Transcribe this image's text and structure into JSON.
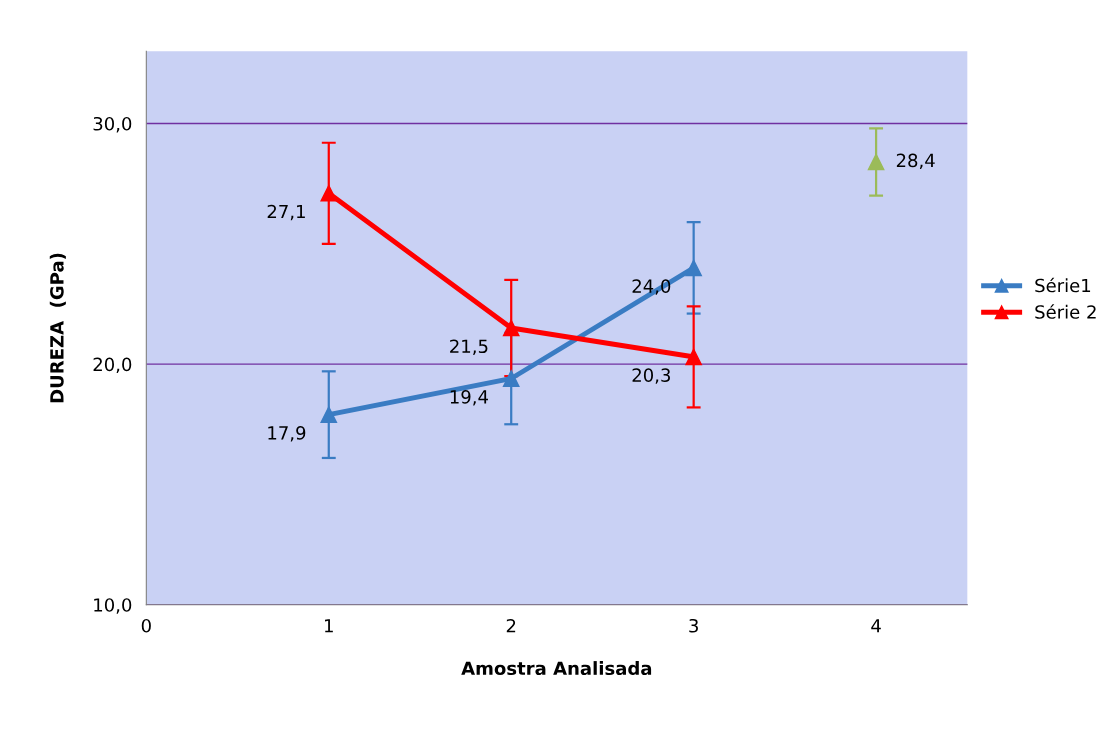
{
  "chart_data": {
    "type": "line",
    "xlabel": "Amostra Analisada",
    "ylabel": "DUREZA  (GPa)",
    "xlim": [
      0,
      4.5
    ],
    "xticks": [
      0,
      1,
      2,
      3,
      4
    ],
    "ylim": [
      10,
      33
    ],
    "yticks": [
      {
        "value": 10,
        "label": "10,0"
      },
      {
        "value": 20,
        "label": "20,0"
      },
      {
        "value": 30,
        "label": "30,0"
      }
    ],
    "grid": "y",
    "legend": "right",
    "marker": "triangle",
    "series": [
      {
        "name": "Série1",
        "color": "#3a7cc3",
        "x": [
          1,
          2,
          3
        ],
        "values": [
          17.9,
          19.4,
          24.0
        ],
        "value_labels": [
          "17,9",
          "19,4",
          "24,0"
        ],
        "errors": [
          1.8,
          1.9,
          1.9
        ]
      },
      {
        "name": "Série 2",
        "color": "#ff0000",
        "x": [
          1,
          2,
          3
        ],
        "values": [
          27.1,
          21.5,
          20.3
        ],
        "value_labels": [
          "27,1",
          "21,5",
          "20,3"
        ],
        "errors": [
          2.1,
          2.0,
          2.1
        ]
      },
      {
        "type": "scatter",
        "color": "#9bbb59",
        "x": [
          4
        ],
        "values": [
          28.4
        ],
        "value_labels": [
          "28,4"
        ],
        "errors": [
          1.4
        ]
      }
    ]
  }
}
